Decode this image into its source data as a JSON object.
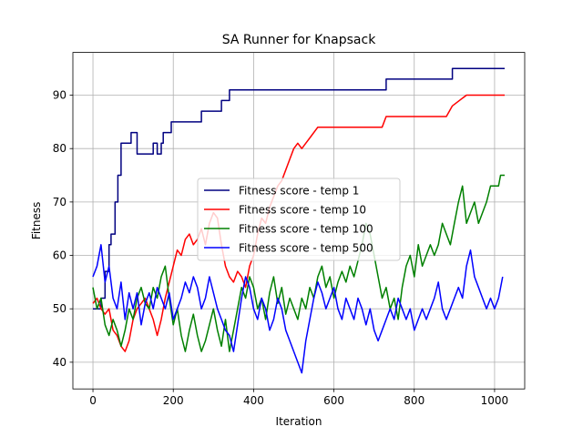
{
  "chart_data": {
    "type": "line",
    "title": "SA Runner for Knapsack",
    "xlabel": "Iteration",
    "ylabel": "Fitness",
    "xlim": [
      -50,
      1075
    ],
    "ylim": [
      35,
      98
    ],
    "xticks": [
      0,
      200,
      400,
      600,
      800,
      1000
    ],
    "yticks": [
      40,
      50,
      60,
      70,
      80,
      90
    ],
    "grid": true,
    "legend_position": "center",
    "series": [
      {
        "name": "Fitness score - temp 1",
        "color": "#000080",
        "step": true,
        "points": [
          [
            0,
            50
          ],
          [
            20,
            52
          ],
          [
            30,
            57
          ],
          [
            40,
            62
          ],
          [
            45,
            64
          ],
          [
            55,
            70
          ],
          [
            62,
            75
          ],
          [
            70,
            81
          ],
          [
            95,
            83
          ],
          [
            110,
            79
          ],
          [
            150,
            81
          ],
          [
            160,
            79
          ],
          [
            170,
            81
          ],
          [
            175,
            83
          ],
          [
            195,
            85
          ],
          [
            270,
            87
          ],
          [
            320,
            89
          ],
          [
            340,
            91
          ],
          [
            730,
            93
          ],
          [
            895,
            95
          ],
          [
            1025,
            95
          ]
        ]
      },
      {
        "name": "Fitness score - temp 10",
        "color": "#ff0000",
        "step": false,
        "points": [
          [
            0,
            51
          ],
          [
            10,
            52
          ],
          [
            20,
            50
          ],
          [
            30,
            49
          ],
          [
            40,
            50
          ],
          [
            50,
            46
          ],
          [
            60,
            45
          ],
          [
            70,
            43
          ],
          [
            80,
            42
          ],
          [
            90,
            44
          ],
          [
            100,
            48
          ],
          [
            110,
            50
          ],
          [
            120,
            51
          ],
          [
            130,
            52
          ],
          [
            140,
            50
          ],
          [
            150,
            48
          ],
          [
            160,
            45
          ],
          [
            170,
            48
          ],
          [
            180,
            52
          ],
          [
            190,
            55
          ],
          [
            200,
            58
          ],
          [
            210,
            61
          ],
          [
            220,
            60
          ],
          [
            230,
            63
          ],
          [
            240,
            64
          ],
          [
            250,
            62
          ],
          [
            260,
            63
          ],
          [
            270,
            65
          ],
          [
            280,
            62
          ],
          [
            290,
            66
          ],
          [
            300,
            68
          ],
          [
            310,
            67
          ],
          [
            320,
            62
          ],
          [
            330,
            58
          ],
          [
            340,
            56
          ],
          [
            350,
            55
          ],
          [
            360,
            57
          ],
          [
            370,
            56
          ],
          [
            380,
            54
          ],
          [
            390,
            58
          ],
          [
            400,
            60
          ],
          [
            410,
            64
          ],
          [
            420,
            67
          ],
          [
            430,
            66
          ],
          [
            440,
            69
          ],
          [
            450,
            71
          ],
          [
            460,
            73
          ],
          [
            470,
            74
          ],
          [
            480,
            76
          ],
          [
            490,
            78
          ],
          [
            500,
            80
          ],
          [
            510,
            81
          ],
          [
            520,
            80
          ],
          [
            530,
            81
          ],
          [
            540,
            82
          ],
          [
            560,
            84
          ],
          [
            600,
            84
          ],
          [
            620,
            84
          ],
          [
            650,
            84
          ],
          [
            720,
            84
          ],
          [
            730,
            86
          ],
          [
            880,
            86
          ],
          [
            895,
            88
          ],
          [
            930,
            90
          ],
          [
            1025,
            90
          ]
        ]
      },
      {
        "name": "Fitness score - temp 100",
        "color": "#008000",
        "step": false,
        "points": [
          [
            0,
            54
          ],
          [
            10,
            50
          ],
          [
            20,
            52
          ],
          [
            30,
            47
          ],
          [
            40,
            45
          ],
          [
            50,
            48
          ],
          [
            60,
            46
          ],
          [
            70,
            43
          ],
          [
            80,
            46
          ],
          [
            90,
            50
          ],
          [
            100,
            48
          ],
          [
            110,
            52
          ],
          [
            120,
            54
          ],
          [
            130,
            51
          ],
          [
            140,
            50
          ],
          [
            150,
            54
          ],
          [
            160,
            52
          ],
          [
            170,
            56
          ],
          [
            180,
            58
          ],
          [
            190,
            52
          ],
          [
            200,
            47
          ],
          [
            210,
            50
          ],
          [
            220,
            45
          ],
          [
            230,
            42
          ],
          [
            240,
            46
          ],
          [
            250,
            49
          ],
          [
            260,
            45
          ],
          [
            270,
            42
          ],
          [
            280,
            44
          ],
          [
            290,
            47
          ],
          [
            300,
            50
          ],
          [
            310,
            46
          ],
          [
            320,
            43
          ],
          [
            330,
            48
          ],
          [
            340,
            42
          ],
          [
            350,
            46
          ],
          [
            360,
            50
          ],
          [
            370,
            54
          ],
          [
            380,
            52
          ],
          [
            390,
            56
          ],
          [
            400,
            54
          ],
          [
            410,
            50
          ],
          [
            420,
            52
          ],
          [
            430,
            48
          ],
          [
            440,
            53
          ],
          [
            450,
            56
          ],
          [
            460,
            51
          ],
          [
            470,
            54
          ],
          [
            480,
            49
          ],
          [
            490,
            52
          ],
          [
            500,
            50
          ],
          [
            510,
            48
          ],
          [
            520,
            52
          ],
          [
            530,
            50
          ],
          [
            540,
            54
          ],
          [
            550,
            52
          ],
          [
            560,
            56
          ],
          [
            570,
            58
          ],
          [
            580,
            54
          ],
          [
            590,
            56
          ],
          [
            600,
            52
          ],
          [
            610,
            55
          ],
          [
            620,
            57
          ],
          [
            630,
            55
          ],
          [
            640,
            58
          ],
          [
            650,
            56
          ],
          [
            660,
            59
          ],
          [
            670,
            62
          ],
          [
            680,
            66
          ],
          [
            690,
            64
          ],
          [
            700,
            60
          ],
          [
            710,
            56
          ],
          [
            720,
            52
          ],
          [
            730,
            54
          ],
          [
            740,
            50
          ],
          [
            750,
            52
          ],
          [
            760,
            48
          ],
          [
            770,
            54
          ],
          [
            780,
            58
          ],
          [
            790,
            60
          ],
          [
            800,
            56
          ],
          [
            810,
            62
          ],
          [
            820,
            58
          ],
          [
            830,
            60
          ],
          [
            840,
            62
          ],
          [
            850,
            60
          ],
          [
            860,
            62
          ],
          [
            870,
            66
          ],
          [
            880,
            64
          ],
          [
            890,
            62
          ],
          [
            900,
            66
          ],
          [
            910,
            70
          ],
          [
            920,
            73
          ],
          [
            930,
            66
          ],
          [
            940,
            68
          ],
          [
            950,
            70
          ],
          [
            960,
            66
          ],
          [
            970,
            68
          ],
          [
            980,
            70
          ],
          [
            990,
            73
          ],
          [
            1010,
            73
          ],
          [
            1015,
            75
          ],
          [
            1025,
            75
          ]
        ]
      },
      {
        "name": "Fitness score - temp 500",
        "color": "#0000ff",
        "step": false,
        "points": [
          [
            0,
            56
          ],
          [
            10,
            58
          ],
          [
            20,
            62
          ],
          [
            30,
            55
          ],
          [
            40,
            58
          ],
          [
            50,
            52
          ],
          [
            60,
            50
          ],
          [
            70,
            55
          ],
          [
            80,
            48
          ],
          [
            90,
            53
          ],
          [
            100,
            50
          ],
          [
            110,
            53
          ],
          [
            120,
            47
          ],
          [
            130,
            51
          ],
          [
            140,
            53
          ],
          [
            150,
            50
          ],
          [
            160,
            54
          ],
          [
            170,
            52
          ],
          [
            180,
            50
          ],
          [
            190,
            53
          ],
          [
            200,
            48
          ],
          [
            210,
            50
          ],
          [
            220,
            52
          ],
          [
            230,
            55
          ],
          [
            240,
            53
          ],
          [
            250,
            56
          ],
          [
            260,
            54
          ],
          [
            270,
            50
          ],
          [
            280,
            52
          ],
          [
            290,
            56
          ],
          [
            300,
            53
          ],
          [
            310,
            50
          ],
          [
            320,
            48
          ],
          [
            330,
            46
          ],
          [
            340,
            45
          ],
          [
            350,
            42
          ],
          [
            360,
            47
          ],
          [
            370,
            52
          ],
          [
            380,
            56
          ],
          [
            390,
            54
          ],
          [
            400,
            50
          ],
          [
            410,
            48
          ],
          [
            420,
            52
          ],
          [
            430,
            50
          ],
          [
            440,
            46
          ],
          [
            450,
            48
          ],
          [
            460,
            52
          ],
          [
            470,
            50
          ],
          [
            480,
            46
          ],
          [
            490,
            44
          ],
          [
            500,
            42
          ],
          [
            510,
            40
          ],
          [
            520,
            38
          ],
          [
            530,
            44
          ],
          [
            540,
            48
          ],
          [
            550,
            52
          ],
          [
            560,
            55
          ],
          [
            570,
            53
          ],
          [
            580,
            50
          ],
          [
            590,
            52
          ],
          [
            600,
            54
          ],
          [
            610,
            50
          ],
          [
            620,
            48
          ],
          [
            630,
            52
          ],
          [
            640,
            50
          ],
          [
            650,
            48
          ],
          [
            660,
            52
          ],
          [
            670,
            50
          ],
          [
            680,
            47
          ],
          [
            690,
            50
          ],
          [
            700,
            46
          ],
          [
            710,
            44
          ],
          [
            720,
            46
          ],
          [
            730,
            48
          ],
          [
            740,
            50
          ],
          [
            750,
            48
          ],
          [
            760,
            52
          ],
          [
            770,
            50
          ],
          [
            780,
            48
          ],
          [
            790,
            50
          ],
          [
            800,
            46
          ],
          [
            810,
            48
          ],
          [
            820,
            50
          ],
          [
            830,
            48
          ],
          [
            840,
            50
          ],
          [
            850,
            52
          ],
          [
            860,
            55
          ],
          [
            870,
            50
          ],
          [
            880,
            48
          ],
          [
            890,
            50
          ],
          [
            900,
            52
          ],
          [
            910,
            54
          ],
          [
            920,
            52
          ],
          [
            930,
            58
          ],
          [
            940,
            61
          ],
          [
            950,
            56
          ],
          [
            960,
            54
          ],
          [
            970,
            52
          ],
          [
            980,
            50
          ],
          [
            990,
            52
          ],
          [
            1000,
            50
          ],
          [
            1010,
            52
          ],
          [
            1020,
            56
          ]
        ]
      }
    ]
  }
}
